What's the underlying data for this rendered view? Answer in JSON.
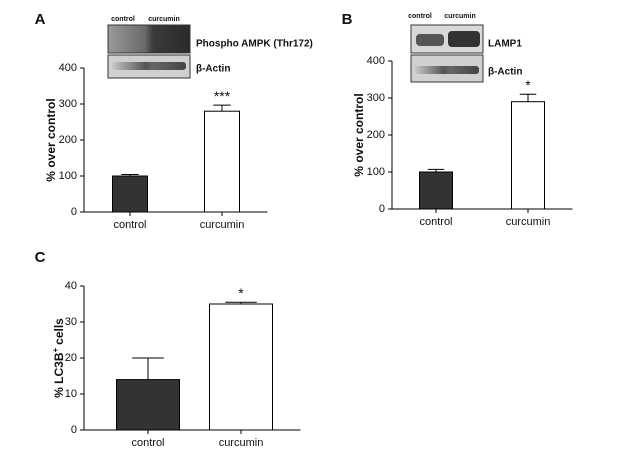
{
  "chart_data": [
    {
      "type": "bar",
      "label": "A",
      "ylabel": [
        "% over control"
      ],
      "categories": [
        "control",
        "curcumin"
      ],
      "values": [
        100,
        280
      ],
      "errors": [
        4,
        17
      ],
      "value_annotations": [
        null,
        "***"
      ],
      "colors": [
        "#333333",
        "#ffffff"
      ],
      "ylim": [
        0,
        400
      ],
      "yticks": [
        0,
        100,
        200,
        300,
        400
      ],
      "blot": {
        "lanes": [
          "control",
          "curcumin"
        ],
        "bands": [
          "Phospho AMPK (Thr172)",
          "β-Actin"
        ]
      }
    },
    {
      "type": "bar",
      "label": "B",
      "ylabel": [
        "% over control"
      ],
      "categories": [
        "control",
        "curcumin"
      ],
      "values": [
        100,
        290
      ],
      "errors": [
        7,
        20
      ],
      "value_annotations": [
        null,
        "*"
      ],
      "colors": [
        "#333333",
        "#ffffff"
      ],
      "ylim": [
        0,
        400
      ],
      "yticks": [
        0,
        100,
        200,
        300,
        400
      ],
      "blot": {
        "lanes": [
          "control",
          "curcumin"
        ],
        "bands": [
          "LAMP1",
          "β-Actin"
        ]
      }
    },
    {
      "type": "bar",
      "label": "C",
      "ylabel": [
        "% LC3B",
        "+",
        "cells"
      ],
      "categories": [
        "control",
        "curcumin"
      ],
      "values": [
        14,
        35
      ],
      "errors": [
        6,
        0.5
      ],
      "value_annotations": [
        null,
        "*"
      ],
      "colors": [
        "#333333",
        "#ffffff"
      ],
      "ylim": [
        0,
        40
      ],
      "yticks": [
        0,
        10,
        20,
        30,
        40
      ]
    }
  ]
}
